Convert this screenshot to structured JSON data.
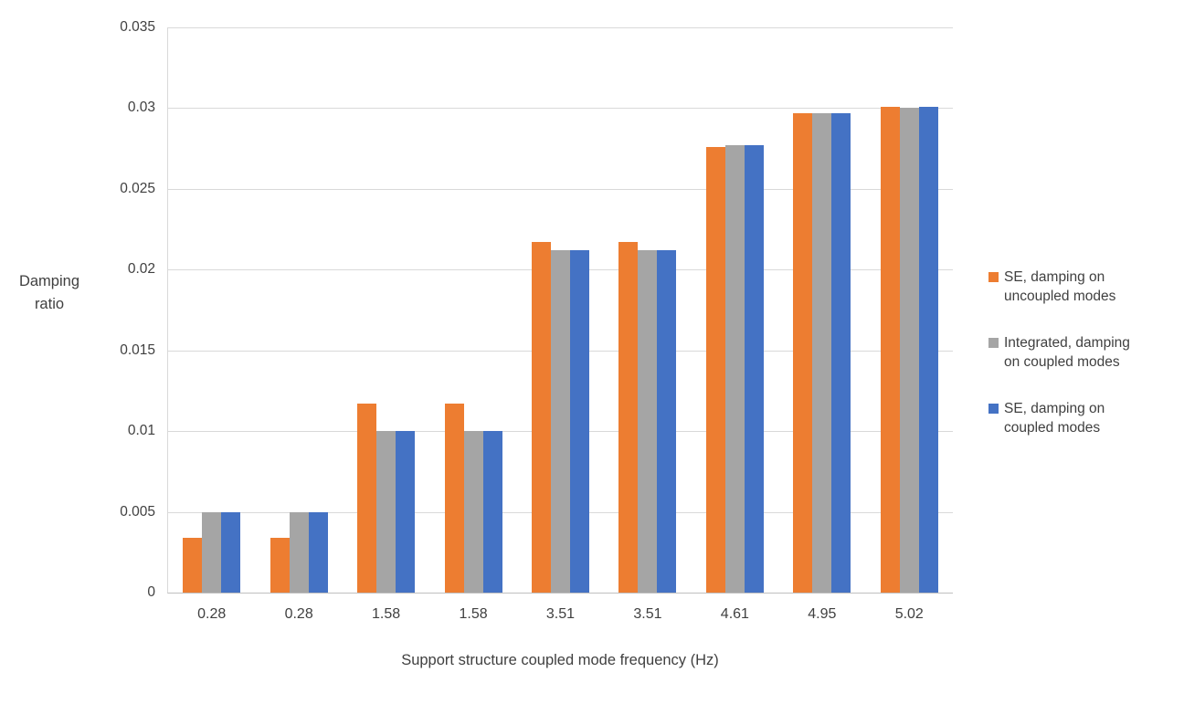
{
  "chart_data": {
    "type": "bar",
    "xlabel": "Support structure coupled mode frequency (Hz)",
    "ylabel": "Damping ratio",
    "ylabel_lines": [
      "Damping",
      "ratio"
    ],
    "categories": [
      "0.28",
      "0.28",
      "1.58",
      "1.58",
      "3.51",
      "3.51",
      "4.61",
      "4.95",
      "5.02"
    ],
    "series": [
      {
        "name": "SE, damping on uncoupled modes",
        "color": "#ED7D31",
        "values": [
          0.0034,
          0.0034,
          0.0117,
          0.0117,
          0.0217,
          0.0217,
          0.0276,
          0.0297,
          0.0301
        ]
      },
      {
        "name": "Integrated, damping on coupled modes",
        "color": "#A5A5A5",
        "values": [
          0.005,
          0.005,
          0.01,
          0.01,
          0.0212,
          0.0212,
          0.0277,
          0.0297,
          0.03
        ]
      },
      {
        "name": "SE, damping on coupled modes",
        "color": "#4472C4",
        "values": [
          0.005,
          0.005,
          0.01,
          0.01,
          0.0212,
          0.0212,
          0.0277,
          0.0297,
          0.0301
        ]
      }
    ],
    "ylim": [
      0,
      0.035
    ],
    "ytick_step": 0.005,
    "yticks": [
      "0",
      "0.005",
      "0.01",
      "0.015",
      "0.02",
      "0.025",
      "0.03",
      "0.035"
    ],
    "grid": true,
    "legend_position": "right"
  }
}
